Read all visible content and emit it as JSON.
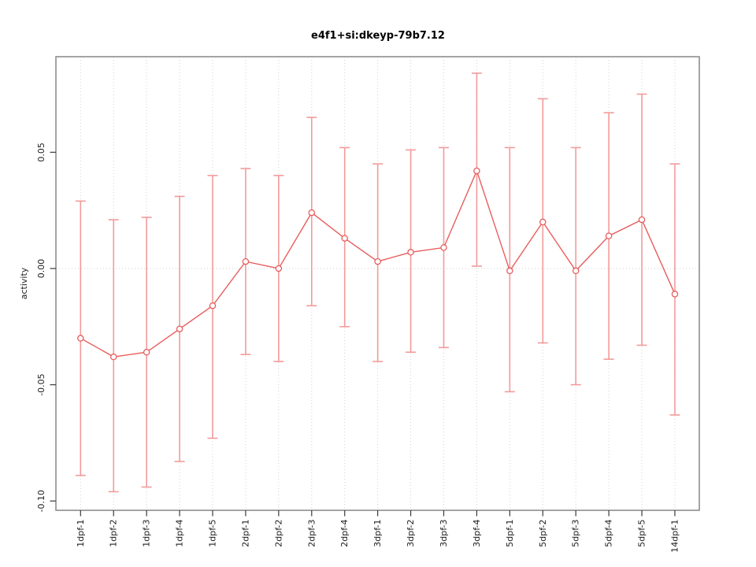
{
  "figure": {
    "title": "e4f1+si:dkeyp-79b7.12",
    "ylabel": "activity"
  },
  "chart_data": {
    "type": "line",
    "subtype": "points-with-error-bars",
    "title": "e4f1+si:dkeyp-79b7.12",
    "xlabel": "",
    "ylabel": "activity",
    "categories": [
      "1dpf-1",
      "1dpf-2",
      "1dpf-3",
      "1dpf-4",
      "1dpf-5",
      "2dpf-1",
      "2dpf-2",
      "2dpf-3",
      "2dpf-4",
      "3dpf-1",
      "3dpf-2",
      "3dpf-3",
      "3dpf-4",
      "5dpf-1",
      "5dpf-2",
      "5dpf-3",
      "5dpf-4",
      "5dpf-5",
      "14dpf-1"
    ],
    "series": [
      {
        "name": "activity",
        "values": [
          -0.03,
          -0.038,
          -0.036,
          -0.026,
          -0.016,
          0.003,
          0.0,
          0.024,
          0.013,
          0.003,
          0.007,
          0.009,
          0.042,
          -0.001,
          0.02,
          -0.001,
          0.014,
          0.021,
          -0.011
        ],
        "error_upper": [
          0.029,
          0.021,
          0.022,
          0.031,
          0.04,
          0.043,
          0.04,
          0.065,
          0.052,
          0.045,
          0.051,
          0.052,
          0.084,
          0.052,
          0.073,
          0.052,
          0.067,
          0.075,
          0.045
        ],
        "error_lower": [
          -0.089,
          -0.096,
          -0.094,
          -0.083,
          -0.073,
          -0.037,
          -0.04,
          -0.016,
          -0.025,
          -0.04,
          -0.036,
          -0.034,
          0.001,
          -0.053,
          -0.032,
          -0.05,
          -0.039,
          -0.033,
          -0.063
        ]
      }
    ],
    "yticks": [
      0.05,
      0.0,
      -0.05,
      -0.1
    ],
    "ytick_labels": [
      "0.05",
      "0.00",
      "-0.05",
      "-0.10"
    ],
    "ylim": [
      -0.104,
      0.0911
    ],
    "grid": {
      "vertical_per_category": true,
      "horizontal_at_zero": true,
      "style": "dotted"
    },
    "marker": "open-circle",
    "legend": "none",
    "colors": {
      "errorbar": "#f29b9b",
      "line": "#e85d5d",
      "marker_stroke": "#e85d5d",
      "marker_fill": "#ffffff",
      "grid": "#d2d2d2",
      "box": "#8d8d8d",
      "tick": "#3a3a3a",
      "text": "#1c1c1c",
      "background": "#ffffff"
    }
  }
}
